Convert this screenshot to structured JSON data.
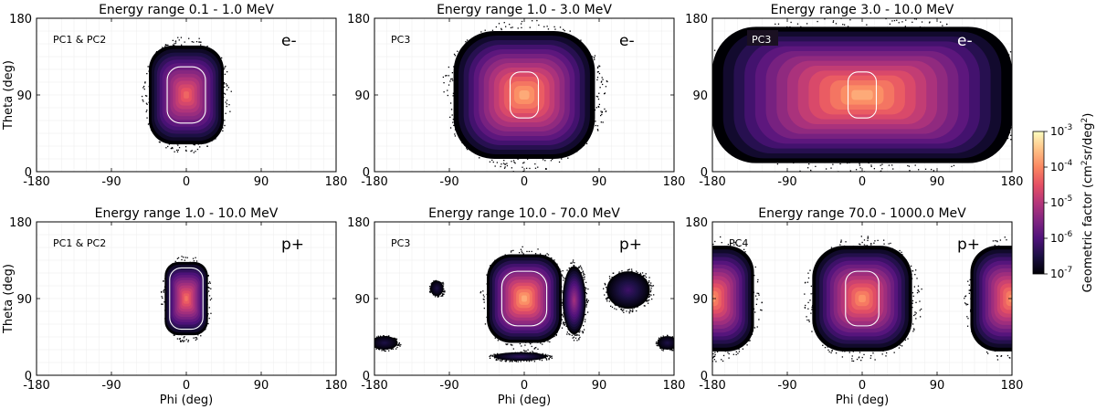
{
  "figure": {
    "colorbar": {
      "label_text": "Geometric factor (cm",
      "label_sup1": "2",
      "label_mid": "sr/deg",
      "label_sup2": "2",
      "label_end": ")",
      "ticks": [
        {
          "base": "10",
          "exp": "-3"
        },
        {
          "base": "10",
          "exp": "-4"
        },
        {
          "base": "10",
          "exp": "-5"
        },
        {
          "base": "10",
          "exp": "-6"
        },
        {
          "base": "10",
          "exp": "-7"
        }
      ],
      "colors": [
        "#000004",
        "#1c1044",
        "#4f127b",
        "#812581",
        "#b5367a",
        "#e55064",
        "#fb8761",
        "#fec287",
        "#fcfdbf"
      ]
    }
  },
  "chart_data": [
    {
      "type": "heatmap",
      "title": "Energy range 0.1 - 1.0 MeV",
      "label": "PC1 & PC2",
      "particle": "e-",
      "xlabel": "",
      "ylabel": "Theta (deg)",
      "xlim": [
        -180,
        180
      ],
      "ylim": [
        0,
        180
      ],
      "xticks": [
        "-180",
        "-90",
        "0",
        "90",
        "180"
      ],
      "yticks": [
        "0",
        "90",
        "180"
      ],
      "blobs": [
        {
          "phi": 0,
          "theta": 90,
          "phi_halfwidth": 45,
          "theta_halfwidth": 58,
          "peak_log10": -4.3,
          "shape": "box"
        }
      ],
      "contour": {
        "phi": 0,
        "theta": 90,
        "phi_halfwidth": 23,
        "theta_halfwidth": 33
      }
    },
    {
      "type": "heatmap",
      "title": "Energy range 1.0 - 3.0 MeV",
      "label": "PC3",
      "particle": "e-",
      "xlabel": "",
      "ylabel": "",
      "xlim": [
        -180,
        180
      ],
      "ylim": [
        0,
        180
      ],
      "xticks": [
        "-180",
        "-90",
        "0",
        "90",
        "180"
      ],
      "yticks": [
        "0",
        "90",
        "180"
      ],
      "blobs": [
        {
          "phi": 0,
          "theta": 90,
          "phi_halfwidth": 85,
          "theta_halfwidth": 75,
          "peak_log10": -3.7,
          "shape": "box"
        }
      ],
      "contour": {
        "phi": 0,
        "theta": 90,
        "phi_halfwidth": 17,
        "theta_halfwidth": 27
      }
    },
    {
      "type": "heatmap",
      "title": "Energy range 3.0 - 10.0 MeV",
      "label": "PC3",
      "particle": "e-",
      "xlabel": "",
      "ylabel": "",
      "xlim": [
        -180,
        180
      ],
      "ylim": [
        0,
        180
      ],
      "xticks": [
        "-180",
        "-90",
        "0",
        "90",
        "180"
      ],
      "yticks": [
        "0",
        "90",
        "180"
      ],
      "blobs": [
        {
          "phi": 0,
          "theta": 90,
          "phi_halfwidth": 180,
          "theta_halfwidth": 80,
          "peak_log10": -3.7,
          "shape": "box"
        }
      ],
      "contour": {
        "phi": 0,
        "theta": 90,
        "phi_halfwidth": 17,
        "theta_halfwidth": 27
      }
    },
    {
      "type": "heatmap",
      "title": "Energy range 1.0 - 10.0 MeV",
      "label": "PC1 & PC2",
      "particle": "p+",
      "xlabel": "Phi (deg)",
      "ylabel": "Theta (deg)",
      "xlim": [
        -180,
        180
      ],
      "ylim": [
        0,
        180
      ],
      "xticks": [
        "-180",
        "-90",
        "0",
        "90",
        "180"
      ],
      "yticks": [
        "0",
        "90",
        "180"
      ],
      "blobs": [
        {
          "phi": 0,
          "theta": 90,
          "phi_halfwidth": 26,
          "theta_halfwidth": 43,
          "peak_log10": -4.2,
          "shape": "box"
        }
      ],
      "contour": {
        "phi": 0,
        "theta": 90,
        "phi_halfwidth": 20,
        "theta_halfwidth": 36
      }
    },
    {
      "type": "heatmap",
      "title": "Energy range 10.0 - 70.0 MeV",
      "label": "PC3",
      "particle": "p+",
      "xlabel": "Phi (deg)",
      "ylabel": "",
      "xlim": [
        -180,
        180
      ],
      "ylim": [
        0,
        180
      ],
      "xticks": [
        "-180",
        "-90",
        "0",
        "90",
        "180"
      ],
      "yticks": [
        "0",
        "90",
        "180"
      ],
      "blobs": [
        {
          "phi": 0,
          "theta": 90,
          "phi_halfwidth": 45,
          "theta_halfwidth": 52,
          "peak_log10": -3.7,
          "shape": "box"
        },
        {
          "phi": 60,
          "theta": 88,
          "phi_halfwidth": 14,
          "theta_halfwidth": 40,
          "peak_log10": -5.2,
          "shape": "oval"
        },
        {
          "phi": 125,
          "theta": 100,
          "phi_halfwidth": 26,
          "theta_halfwidth": 22,
          "peak_log10": -6.2,
          "shape": "oval"
        },
        {
          "phi": -105,
          "theta": 102,
          "phi_halfwidth": 8,
          "theta_halfwidth": 9,
          "peak_log10": -6.5,
          "shape": "oval"
        },
        {
          "phi": -5,
          "theta": 22,
          "phi_halfwidth": 32,
          "theta_halfwidth": 5,
          "peak_log10": -6.3,
          "shape": "oval"
        },
        {
          "phi": -168,
          "theta": 38,
          "phi_halfwidth": 16,
          "theta_halfwidth": 8,
          "peak_log10": -6.5,
          "shape": "oval"
        },
        {
          "phi": 172,
          "theta": 38,
          "phi_halfwidth": 12,
          "theta_halfwidth": 8,
          "peak_log10": -6.5,
          "shape": "oval"
        }
      ],
      "contour": {
        "phi": 0,
        "theta": 90,
        "phi_halfwidth": 27,
        "theta_halfwidth": 32
      }
    },
    {
      "type": "heatmap",
      "title": "Energy range 70.0 - 1000.0 MeV",
      "label": "PC4",
      "particle": "p+",
      "xlabel": "Phi (deg)",
      "ylabel": "",
      "xlim": [
        -180,
        180
      ],
      "ylim": [
        0,
        180
      ],
      "xticks": [
        "-180",
        "-90",
        "0",
        "90",
        "180"
      ],
      "yticks": [
        "0",
        "90",
        "180"
      ],
      "blobs": [
        {
          "phi": 0,
          "theta": 90,
          "phi_halfwidth": 60,
          "theta_halfwidth": 62,
          "peak_log10": -3.9,
          "shape": "box"
        },
        {
          "phi": -180,
          "theta": 90,
          "phi_halfwidth": 50,
          "theta_halfwidth": 62,
          "peak_log10": -3.9,
          "shape": "box"
        },
        {
          "phi": 180,
          "theta": 90,
          "phi_halfwidth": 50,
          "theta_halfwidth": 62,
          "peak_log10": -3.9,
          "shape": "box"
        }
      ],
      "contour": {
        "phi": 0,
        "theta": 90,
        "phi_halfwidth": 20,
        "theta_halfwidth": 32
      }
    }
  ]
}
